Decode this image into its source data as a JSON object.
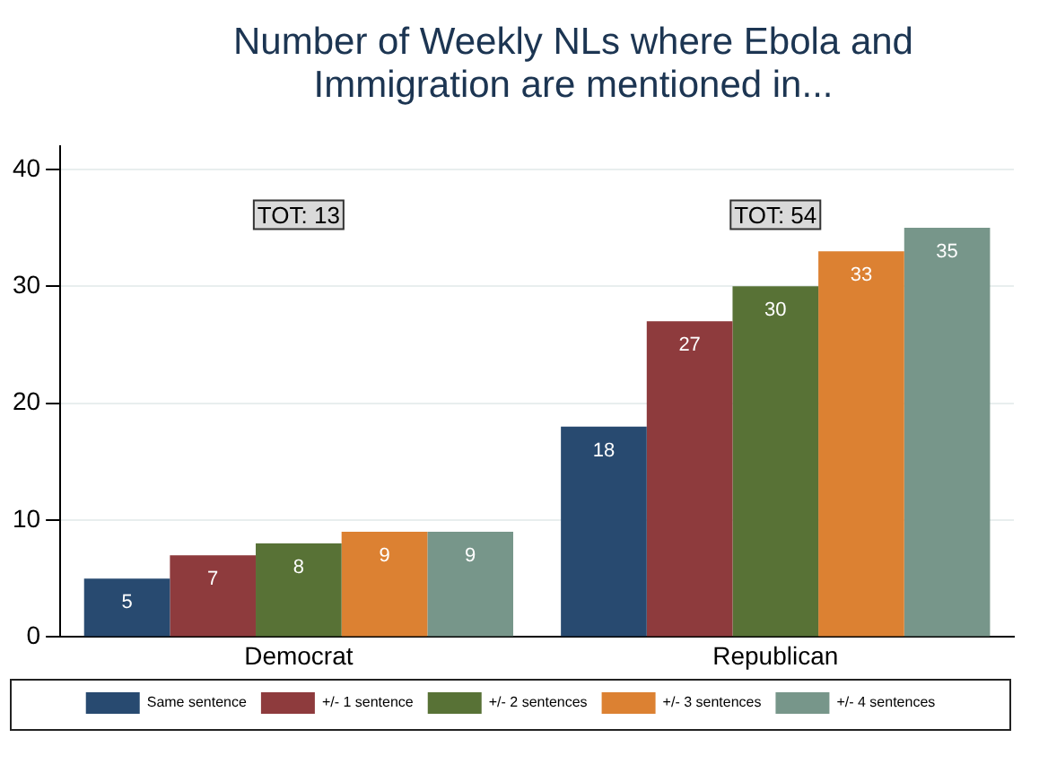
{
  "chart_data": {
    "type": "bar",
    "title": "Number of Weekly NLs where Ebola and Immigration are mentioned in...",
    "categories": [
      "Democrat",
      "Republican"
    ],
    "series": [
      {
        "name": "Same sentence",
        "color": "#284a70",
        "values": [
          5,
          18
        ]
      },
      {
        "name": "+/- 1 sentence",
        "color": "#8e3b3d",
        "values": [
          7,
          27
        ]
      },
      {
        "name": "+/- 2 sentences",
        "color": "#587236",
        "values": [
          8,
          30
        ]
      },
      {
        "name": "+/- 3 sentences",
        "color": "#dc8132",
        "values": [
          9,
          33
        ]
      },
      {
        "name": "+/- 4 sentences",
        "color": "#77968a",
        "values": [
          9,
          35
        ]
      }
    ],
    "ylim": [
      0,
      42
    ],
    "yticks": [
      0,
      10,
      20,
      30,
      40
    ],
    "grid": "y",
    "legend": "bottom",
    "data_labels": true,
    "annotations": [
      "TOT: 13",
      "TOT: 54"
    ]
  }
}
